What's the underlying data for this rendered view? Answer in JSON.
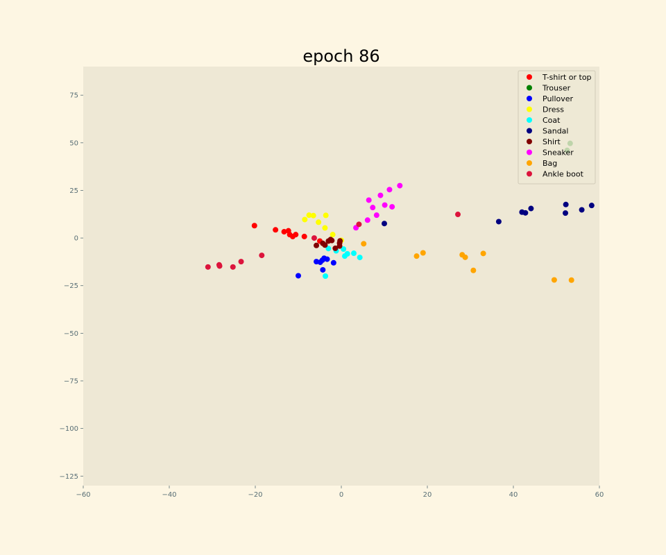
{
  "chart_data": {
    "type": "scatter",
    "title": "epoch 86",
    "xlabel": "",
    "ylabel": "",
    "xlim": [
      -60,
      60
    ],
    "ylim": [
      -130,
      90
    ],
    "xticks": [
      -60,
      -40,
      -20,
      0,
      20,
      40,
      60
    ],
    "yticks": [
      -125,
      -100,
      -75,
      -50,
      -25,
      0,
      25,
      50,
      75
    ],
    "xtick_labels": [
      "−60",
      "−40",
      "−20",
      "0",
      "20",
      "40",
      "60"
    ],
    "ytick_labels": [
      "−125",
      "−100",
      "−75",
      "−50",
      "−25",
      "0",
      "25",
      "50",
      "75"
    ],
    "grid": false,
    "legend_position": "top-right",
    "axes_background": "#eee8d5",
    "tick_color": "#586e75",
    "series": [
      {
        "name": "T-shirt or top",
        "color": "#ff0000",
        "points": [
          [
            -20.2,
            6.5
          ],
          [
            -15.3,
            4.3
          ],
          [
            -13.3,
            3.3
          ],
          [
            -12.3,
            3.8
          ],
          [
            -12,
            1.8
          ],
          [
            -11.3,
            0.8
          ],
          [
            -10.6,
            1.8
          ],
          [
            -8.6,
            0.8
          ],
          [
            -5,
            -1.6
          ]
        ]
      },
      {
        "name": "Trouser",
        "color": "#008000",
        "points": [
          [
            52.5,
            46
          ],
          [
            53.2,
            49.7
          ]
        ]
      },
      {
        "name": "Pullover",
        "color": "#0000ff",
        "points": [
          [
            -10,
            -19.8
          ],
          [
            -5.8,
            -12.4
          ],
          [
            -4.9,
            -12.7
          ],
          [
            -4.4,
            -11.6
          ],
          [
            -4,
            -10.6
          ],
          [
            -3.3,
            -11.1
          ],
          [
            -1.8,
            -13
          ],
          [
            -4.3,
            -16.7
          ]
        ]
      },
      {
        "name": "Dress",
        "color": "#ffff00",
        "points": [
          [
            -8.5,
            9.7
          ],
          [
            -7.5,
            12
          ],
          [
            -6.5,
            11.8
          ],
          [
            -5.3,
            8.3
          ],
          [
            -3.6,
            11.9
          ],
          [
            -3.8,
            5.3
          ],
          [
            -2,
            1.8
          ],
          [
            0,
            -1.2
          ]
        ]
      },
      {
        "name": "Coat",
        "color": "#00ffff",
        "points": [
          [
            -3.7,
            -20
          ],
          [
            -3,
            -5.5
          ],
          [
            -1.2,
            -6.7
          ],
          [
            0.5,
            -5.8
          ],
          [
            0.8,
            -9.5
          ],
          [
            1.4,
            -8.3
          ],
          [
            2.9,
            -8
          ],
          [
            4.3,
            -10.2
          ]
        ]
      },
      {
        "name": "Sandal",
        "color": "#000080",
        "points": [
          [
            10,
            7.6
          ],
          [
            36.6,
            8.6
          ],
          [
            42,
            13.6
          ],
          [
            42.8,
            13.2
          ],
          [
            44.1,
            15.5
          ],
          [
            52.2,
            17.6
          ],
          [
            52.1,
            13.1
          ],
          [
            55.9,
            14.8
          ],
          [
            58.2,
            17.1
          ]
        ]
      },
      {
        "name": "Shirt",
        "color": "#800000",
        "points": [
          [
            -5.8,
            -3.9
          ],
          [
            -4.3,
            -2.8
          ],
          [
            -3.8,
            -3.7
          ],
          [
            -3,
            -1.6
          ],
          [
            -2.2,
            -1.3
          ],
          [
            -2.5,
            -0.8
          ],
          [
            -1.4,
            -5.4
          ],
          [
            -0.4,
            -4.2
          ],
          [
            -0.4,
            -2.7
          ],
          [
            -0.3,
            -1.5
          ]
        ]
      },
      {
        "name": "Sneaker",
        "color": "#ff00ff",
        "points": [
          [
            3.4,
            5.4
          ],
          [
            6.1,
            9.4
          ],
          [
            6.4,
            19.9
          ],
          [
            7.3,
            16
          ],
          [
            8.2,
            12
          ],
          [
            9.1,
            22.4
          ],
          [
            10.1,
            17.3
          ],
          [
            11.2,
            25.4
          ],
          [
            11.8,
            16.4
          ],
          [
            13.6,
            27.5
          ]
        ]
      },
      {
        "name": "Bag",
        "color": "#ffa500",
        "points": [
          [
            5.2,
            -3
          ],
          [
            17.5,
            -9.5
          ],
          [
            19,
            -7.8
          ],
          [
            28.1,
            -8.8
          ],
          [
            28.8,
            -10.1
          ],
          [
            30.7,
            -17
          ],
          [
            33,
            -8.1
          ],
          [
            49.5,
            -22
          ],
          [
            53.5,
            -22.1
          ]
        ]
      },
      {
        "name": "Ankle boot",
        "color": "#dc143c",
        "points": [
          [
            -31,
            -15.2
          ],
          [
            -28.4,
            -14.1
          ],
          [
            -28.3,
            -14.7
          ],
          [
            -25.2,
            -15.2
          ],
          [
            -23.3,
            -12.4
          ],
          [
            -18.5,
            -9.1
          ],
          [
            -6.3,
            0
          ],
          [
            4.1,
            7.2
          ],
          [
            27.1,
            12.4
          ]
        ]
      }
    ]
  }
}
